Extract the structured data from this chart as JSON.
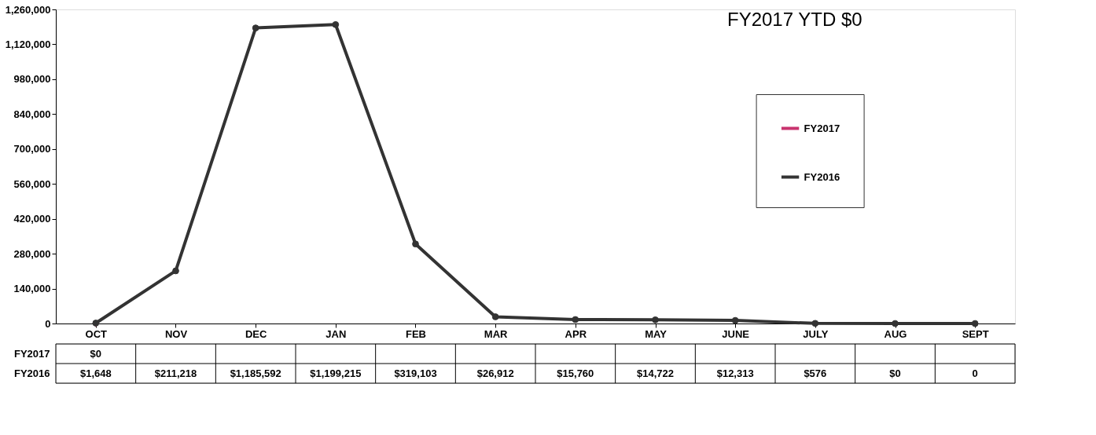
{
  "chart_data": {
    "type": "line",
    "annotations": [
      "FY2017 YTD $0"
    ],
    "categories": [
      "OCT",
      "NOV",
      "DEC",
      "JAN",
      "FEB",
      "MAR",
      "APR",
      "MAY",
      "JUNE",
      "JULY",
      "AUG",
      "SEPT"
    ],
    "series": [
      {
        "name": "FY2017",
        "color": "#c8336e",
        "marker": "diamond",
        "values": [
          0,
          null,
          null,
          null,
          null,
          null,
          null,
          null,
          null,
          null,
          null,
          null
        ],
        "value_labels": [
          "$0",
          null,
          null,
          null,
          null,
          null,
          null,
          null,
          null,
          null,
          null,
          null
        ]
      },
      {
        "name": "FY2016",
        "color": "#333333",
        "marker": "circle",
        "values": [
          1648,
          211218,
          1185592,
          1199215,
          319103,
          26912,
          15760,
          14722,
          12313,
          576,
          0,
          0
        ],
        "value_labels": [
          "$1,648",
          "$211,218",
          "$1,185,592",
          "$1,199,215",
          "$319,103",
          "$26,912",
          "$15,760",
          "$14,722",
          "$12,313",
          "$576",
          "$0",
          "0"
        ]
      }
    ],
    "data_labels": true,
    "ylim": [
      0,
      1260000
    ],
    "yticks": [
      0,
      {
        "value": 140000,
        "label": "140,000"
      },
      {
        "value": 280000,
        "label": "280,000"
      },
      {
        "value": 420000,
        "label": "420,000"
      },
      {
        "value": 560000,
        "label": "560,000"
      },
      {
        "value": 700000,
        "label": "700,000"
      },
      {
        "value": 840000,
        "label": "840,000"
      },
      {
        "value": 980000,
        "label": "980,000"
      },
      {
        "value": 1120000,
        "label": "1,120,000"
      },
      {
        "value": 1260000,
        "label": "1,260,000"
      }
    ],
    "grid": false,
    "legend": "right",
    "line_style": "solid"
  }
}
